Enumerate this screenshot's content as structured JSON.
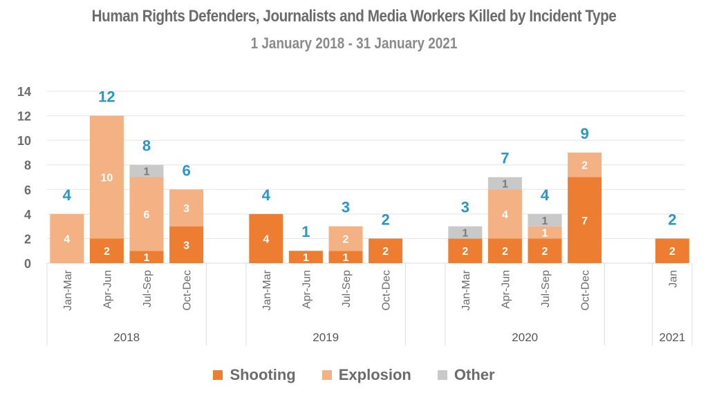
{
  "chart_data": {
    "type": "bar",
    "stacked": true,
    "title": "Human Rights Defenders, Journalists and Media Workers Killed by Incident Type",
    "subtitle": "1 January 2018 - 31 January 2021",
    "xlabel": "",
    "ylabel": "",
    "ylim": [
      0,
      14
    ],
    "yticks": [
      0,
      2,
      4,
      6,
      8,
      10,
      12,
      14
    ],
    "grid": true,
    "legend_position": "bottom",
    "groups": [
      {
        "label": "2018",
        "categories": [
          "Jan-Mar",
          "Apr-Jun",
          "Jul-Sep",
          "Oct-Dec"
        ]
      },
      {
        "label": "2019",
        "categories": [
          "Jan-Mar",
          "Apr-Jun",
          "Jul-Sep",
          "Oct-Dec"
        ]
      },
      {
        "label": "2020",
        "categories": [
          "Jan-Mar",
          "Apr-Jun",
          "Jul-Sep",
          "Oct-Dec"
        ]
      },
      {
        "label": "2021",
        "categories": [
          "Jan"
        ]
      }
    ],
    "series": [
      {
        "name": "Shooting",
        "color": "#ed7d31",
        "values": [
          0,
          2,
          1,
          3,
          4,
          1,
          1,
          2,
          2,
          2,
          2,
          7,
          2
        ]
      },
      {
        "name": "Explosion",
        "color": "#f4b183",
        "values": [
          4,
          10,
          6,
          3,
          0,
          0,
          2,
          0,
          0,
          4,
          1,
          2,
          0
        ]
      },
      {
        "name": "Other",
        "color": "#c9c9c9",
        "values": [
          0,
          0,
          1,
          0,
          0,
          0,
          0,
          0,
          1,
          1,
          1,
          0,
          0
        ]
      }
    ],
    "totals": [
      4,
      12,
      8,
      6,
      4,
      1,
      3,
      2,
      3,
      7,
      4,
      9,
      2
    ],
    "total_label_color": "#2a96c3"
  }
}
